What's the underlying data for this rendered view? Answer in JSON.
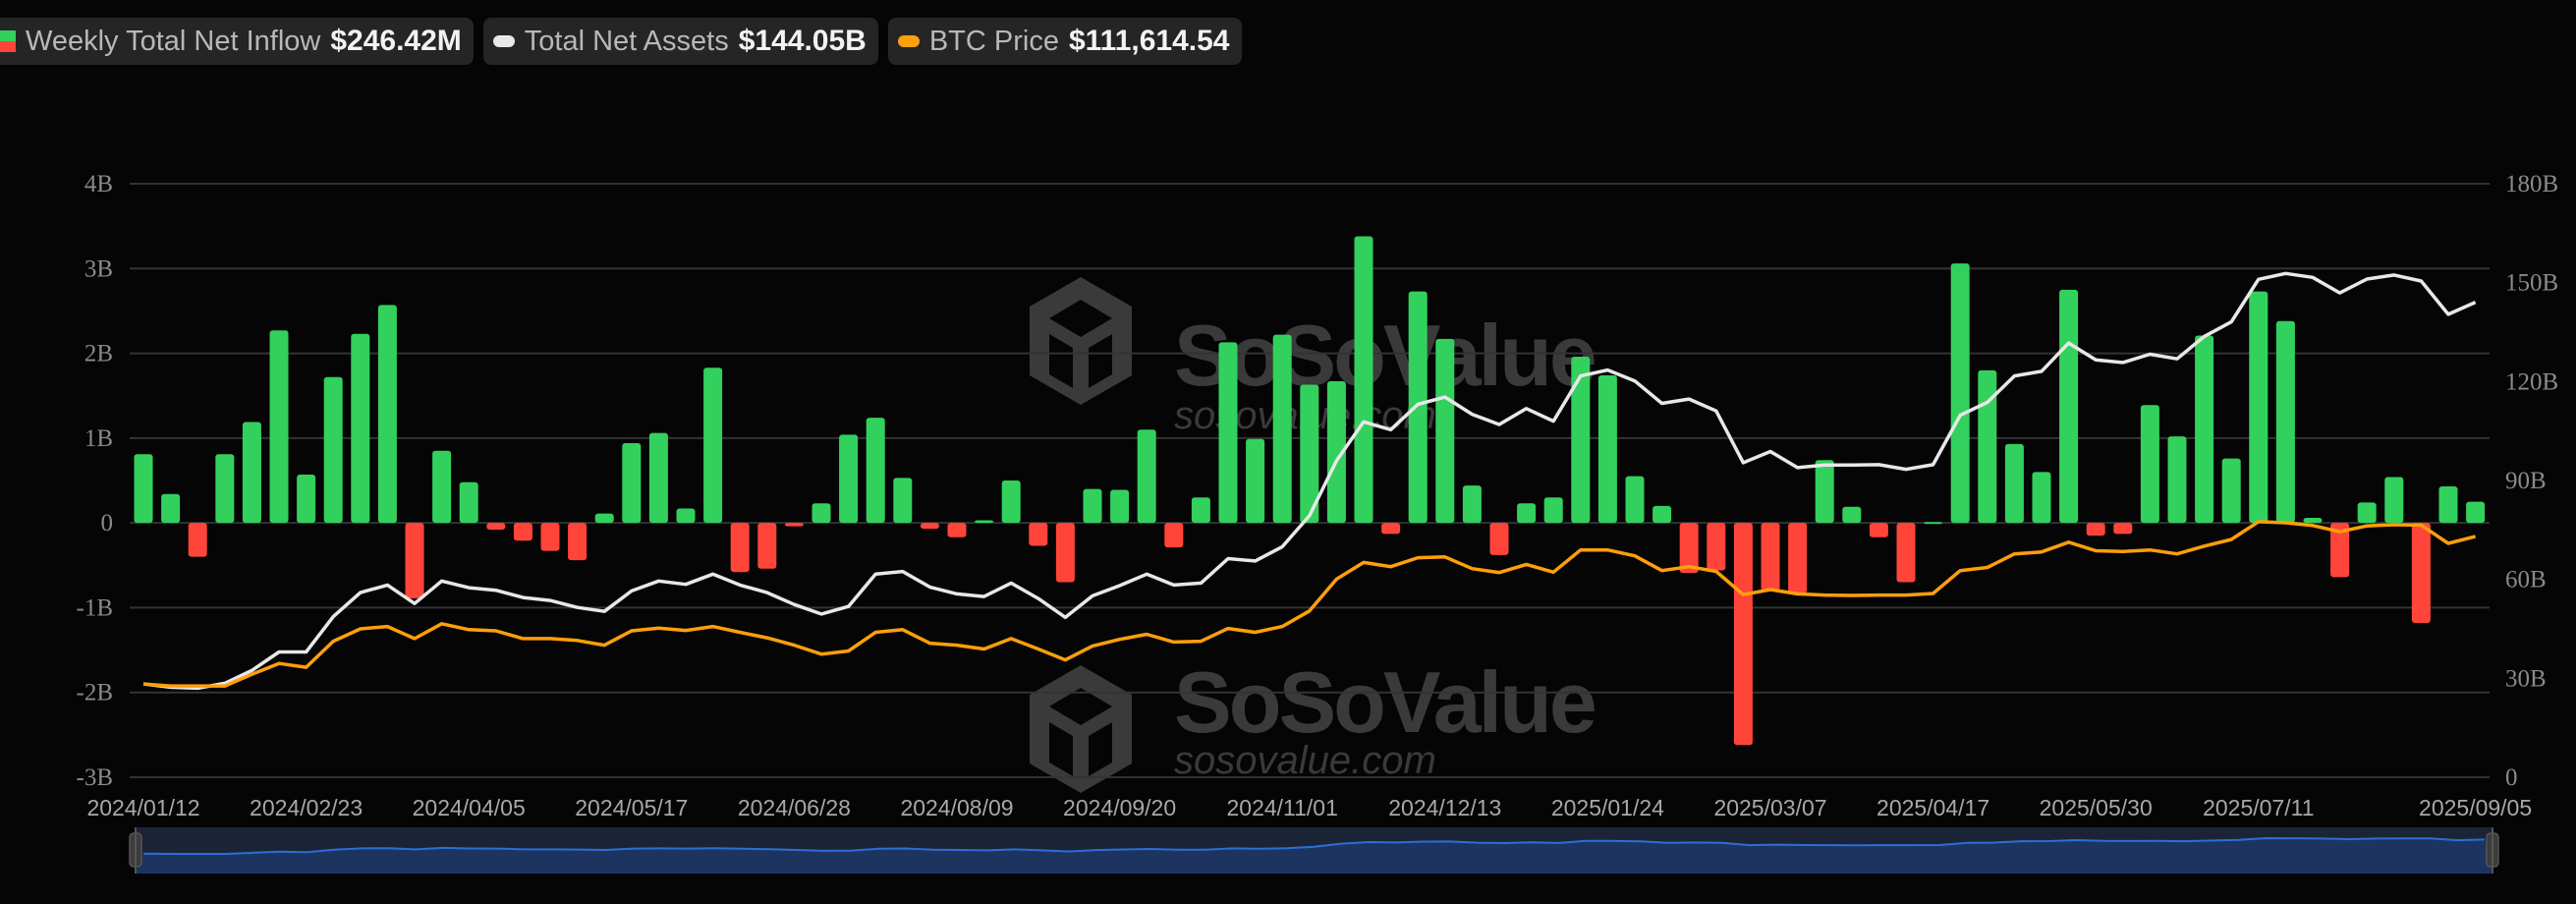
{
  "legend": {
    "inflow": {
      "label": "Weekly Total Net Inflow",
      "value": "$246.42M",
      "icon": "green-red-bar-swatch"
    },
    "assets": {
      "label": "Total Net Assets",
      "value": "$144.05B",
      "color": "#e8e8e8"
    },
    "btc": {
      "label": "BTC Price",
      "value": "$111,614.54",
      "color": "#ff9f0a"
    }
  },
  "watermark": {
    "brand": "SoSoValue",
    "site": "sosovalue.com"
  },
  "colors": {
    "positive": "#32d15d",
    "negative": "#ff453a",
    "assets_line": "#e8e8e8",
    "btc_line": "#ff9f0a",
    "grid": "#333333",
    "navigator_line": "#2a6fd6",
    "navigator_fill": "#1d3461"
  },
  "chart_data": {
    "type": "bar+line",
    "grid": true,
    "left_axis": {
      "ticks": [
        "4B",
        "3B",
        "2B",
        "1B",
        "0",
        "-1B",
        "-2B",
        "-3B"
      ],
      "range": [
        -3,
        4
      ],
      "unit": "B"
    },
    "right_axis": {
      "ticks": [
        "180B",
        "150B",
        "120B",
        "90B",
        "60B",
        "30B",
        "0"
      ],
      "range": [
        0,
        180
      ],
      "unit": "B"
    },
    "btc_axis_hidden_range": [
      0,
      275000
    ],
    "xticks": [
      "2024/01/12",
      "2024/02/23",
      "2024/04/05",
      "2024/05/17",
      "2024/06/28",
      "2024/08/09",
      "2024/09/20",
      "2024/11/01",
      "2024/12/13",
      "2025/01/24",
      "2025/03/07",
      "2025/04/17",
      "2025/05/30",
      "2025/07/11",
      "2025/09/05"
    ],
    "dates": [
      "2024/01/12",
      "2024/01/19",
      "2024/01/26",
      "2024/02/02",
      "2024/02/09",
      "2024/02/16",
      "2024/02/23",
      "2024/03/01",
      "2024/03/08",
      "2024/03/15",
      "2024/03/22",
      "2024/03/28",
      "2024/04/05",
      "2024/04/12",
      "2024/04/19",
      "2024/04/26",
      "2024/05/03",
      "2024/05/10",
      "2024/05/17",
      "2024/05/24",
      "2024/05/31",
      "2024/06/07",
      "2024/06/14",
      "2024/06/21",
      "2024/06/28",
      "2024/07/05",
      "2024/07/12",
      "2024/07/19",
      "2024/07/26",
      "2024/08/02",
      "2024/08/09",
      "2024/08/16",
      "2024/08/23",
      "2024/08/30",
      "2024/09/06",
      "2024/09/13",
      "2024/09/20",
      "2024/09/27",
      "2024/10/04",
      "2024/10/11",
      "2024/10/18",
      "2024/10/25",
      "2024/11/01",
      "2024/11/08",
      "2024/11/15",
      "2024/11/22",
      "2024/11/29",
      "2024/12/06",
      "2024/12/13",
      "2024/12/20",
      "2024/12/27",
      "2025/01/03",
      "2025/01/10",
      "2025/01/17",
      "2025/01/24",
      "2025/01/31",
      "2025/02/07",
      "2025/02/14",
      "2025/02/21",
      "2025/02/28",
      "2025/03/07",
      "2025/03/14",
      "2025/03/21",
      "2025/03/28",
      "2025/04/04",
      "2025/04/11",
      "2025/04/17",
      "2025/04/25",
      "2025/05/02",
      "2025/05/09",
      "2025/05/16",
      "2025/05/23",
      "2025/05/30",
      "2025/06/06",
      "2025/06/13",
      "2025/06/20",
      "2025/06/27",
      "2025/07/03",
      "2025/07/11",
      "2025/07/18",
      "2025/07/25",
      "2025/08/01",
      "2025/08/08",
      "2025/08/15",
      "2025/08/22",
      "2025/08/29",
      "2025/09/05"
    ],
    "series": [
      {
        "name": "Weekly Total Net Inflow",
        "type": "bar",
        "unit": "B USD",
        "values": [
          0.81,
          0.34,
          -0.4,
          0.81,
          1.19,
          2.27,
          0.57,
          1.72,
          2.23,
          2.57,
          -0.89,
          0.85,
          0.48,
          -0.08,
          -0.21,
          -0.33,
          -0.44,
          0.11,
          0.94,
          1.06,
          0.17,
          1.83,
          -0.58,
          -0.54,
          -0.04,
          0.23,
          1.04,
          1.24,
          0.53,
          -0.07,
          -0.17,
          0.03,
          0.5,
          -0.27,
          -0.7,
          0.4,
          0.39,
          1.1,
          -0.29,
          0.3,
          2.13,
          0.99,
          2.22,
          1.63,
          1.67,
          3.38,
          -0.13,
          2.73,
          2.17,
          0.44,
          -0.38,
          0.23,
          0.3,
          1.96,
          1.74,
          0.55,
          0.2,
          -0.59,
          -0.56,
          -2.62,
          -0.8,
          -0.83,
          0.74,
          0.19,
          -0.17,
          -0.7,
          0.01,
          3.06,
          1.8,
          0.93,
          0.6,
          2.75,
          -0.15,
          -0.13,
          1.39,
          1.02,
          2.21,
          0.76,
          2.73,
          2.38,
          0.06,
          -0.64,
          0.24,
          0.54,
          -1.18,
          0.43,
          0.25
        ]
      },
      {
        "name": "Total Net Assets",
        "type": "line",
        "unit": "B USD",
        "axis": "right",
        "values": [
          28.3,
          27.3,
          27.0,
          28.5,
          32.4,
          38.0,
          38.0,
          48.7,
          56.0,
          58.3,
          52.7,
          59.5,
          57.5,
          56.7,
          54.5,
          53.6,
          51.5,
          50.3,
          56.5,
          59.5,
          58.5,
          61.6,
          58.3,
          56.0,
          52.4,
          49.5,
          51.8,
          61.6,
          62.4,
          57.7,
          55.6,
          54.8,
          58.9,
          54.2,
          48.5,
          55.0,
          58.1,
          61.6,
          58.3,
          58.9,
          66.3,
          65.6,
          69.9,
          79.3,
          96.0,
          107.8,
          105.4,
          113.1,
          115.3,
          110.1,
          107.0,
          111.8,
          108.0,
          121.7,
          123.5,
          120.2,
          113.4,
          114.7,
          111.1,
          95.4,
          98.8,
          93.9,
          94.7,
          94.7,
          94.8,
          93.4,
          94.8,
          109.8,
          113.7,
          121.7,
          123.1,
          131.7,
          126.6,
          125.8,
          128.3,
          126.9,
          133.7,
          138.1,
          151.0,
          152.8,
          151.6,
          146.9,
          151.1,
          152.3,
          150.5,
          140.4,
          144.05
        ]
      },
      {
        "name": "BTC Price",
        "type": "line",
        "unit": "USD",
        "axis": "hidden",
        "values": [
          43200,
          42300,
          42300,
          42300,
          47700,
          52740,
          50940,
          63000,
          68760,
          69840,
          64260,
          71100,
          68400,
          67860,
          64260,
          64260,
          63360,
          61200,
          67860,
          69120,
          68040,
          69840,
          67140,
          64620,
          61200,
          57060,
          58500,
          67140,
          68400,
          62100,
          61200,
          59400,
          64260,
          59400,
          54360,
          60840,
          63900,
          66240,
          62640,
          63000,
          68940,
          67140,
          69840,
          77040,
          91800,
          99540,
          97560,
          101700,
          102060,
          96660,
          94860,
          98640,
          95040,
          105300,
          105300,
          102600,
          95760,
          97560,
          95400,
          84600,
          86940,
          84960,
          84420,
          84240,
          84420,
          84420,
          85140,
          95760,
          97200,
          103500,
          104400,
          108900,
          104940,
          104580,
          105300,
          103500,
          107100,
          110160,
          118440,
          117900,
          116640,
          113760,
          116460,
          117000,
          116820,
          108360,
          111614.54
        ]
      }
    ]
  }
}
